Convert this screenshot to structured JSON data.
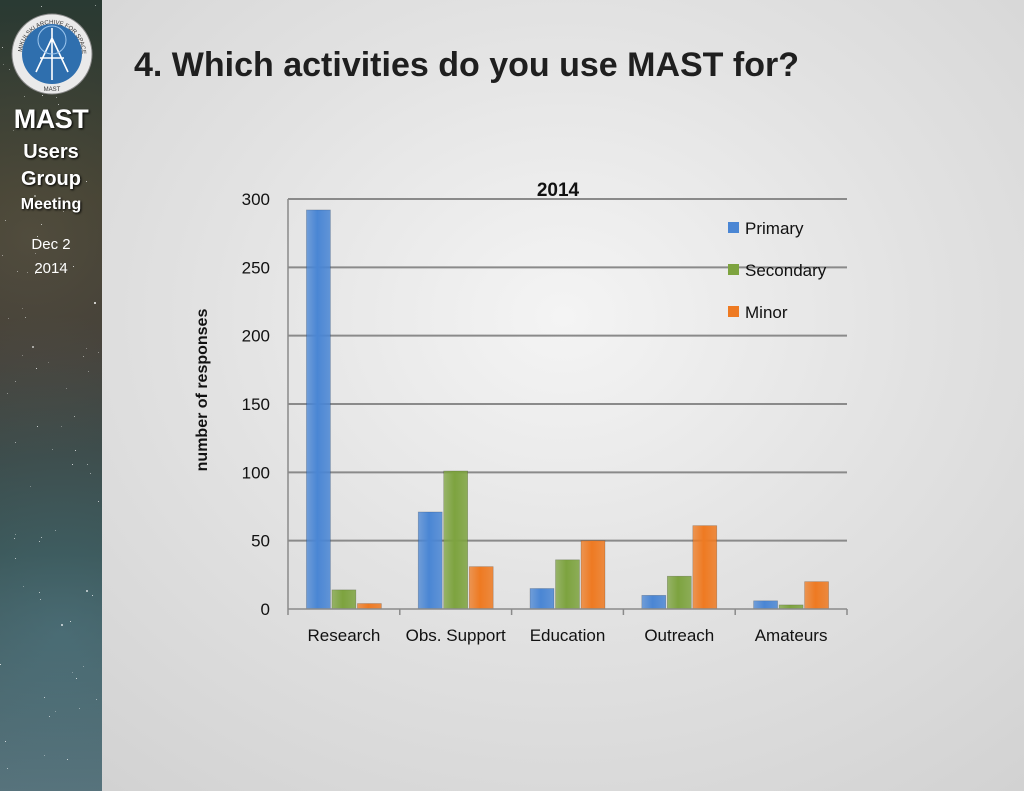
{
  "sidebar": {
    "logo_text": "MIKULSKI ARCHIVE FOR SPACE TELESCOPES",
    "logo_center": "MAST",
    "title_line1": "MAST",
    "title_line2": "Users",
    "title_line3": "Group",
    "title_line4": "Meeting",
    "date_line1": "Dec 2",
    "date_line2": "2014"
  },
  "slide": {
    "title": "4. Which activities do you use MAST for?"
  },
  "chart_data": {
    "type": "bar",
    "title": "2014",
    "xlabel": "",
    "ylabel": "number of responses",
    "ylim": [
      0,
      300
    ],
    "yticks": [
      0,
      50,
      100,
      150,
      200,
      250,
      300
    ],
    "categories": [
      "Research",
      "Obs. Support",
      "Education",
      "Outreach",
      "Amateurs"
    ],
    "series": [
      {
        "name": "Primary",
        "color": "#4a86d4",
        "values": [
          292,
          71,
          15,
          10,
          6
        ]
      },
      {
        "name": "Secondary",
        "color": "#7da33f",
        "values": [
          14,
          101,
          36,
          24,
          3
        ]
      },
      {
        "name": "Minor",
        "color": "#ee7a22",
        "values": [
          4,
          31,
          50,
          61,
          20
        ]
      }
    ],
    "grid": true,
    "legend_position": "top-right"
  }
}
